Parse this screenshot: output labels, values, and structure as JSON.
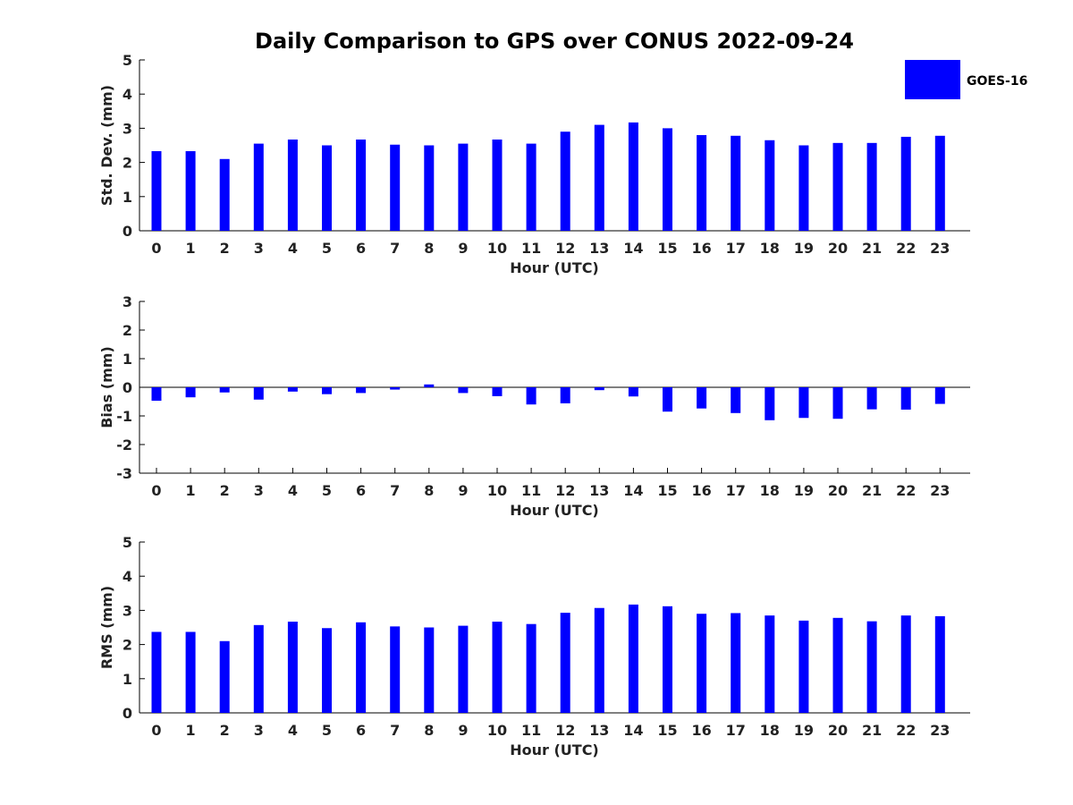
{
  "title": "Daily Comparison to GPS over CONUS 2022-09-24",
  "legend": {
    "label": "GOES-16",
    "placement": "top-right",
    "color": "#0000ff"
  },
  "bar_color": "#0000ff",
  "chart_data": [
    {
      "type": "bar",
      "xlabel": "Hour (UTC)",
      "ylabel": "Std. Dev. (mm)",
      "ylim": [
        0,
        5
      ],
      "yticks": [
        0,
        1,
        2,
        3,
        4,
        5
      ],
      "categories": [
        "0",
        "1",
        "2",
        "3",
        "4",
        "5",
        "6",
        "7",
        "8",
        "9",
        "10",
        "11",
        "12",
        "13",
        "14",
        "15",
        "16",
        "17",
        "18",
        "19",
        "20",
        "21",
        "22",
        "23"
      ],
      "series": [
        {
          "name": "GOES-16",
          "values": [
            2.33,
            2.33,
            2.1,
            2.55,
            2.67,
            2.5,
            2.67,
            2.52,
            2.5,
            2.55,
            2.67,
            2.55,
            2.9,
            3.1,
            3.17,
            3.0,
            2.8,
            2.78,
            2.65,
            2.5,
            2.57,
            2.57,
            2.75,
            2.78
          ]
        }
      ],
      "grid": false
    },
    {
      "type": "bar",
      "xlabel": "Hour (UTC)",
      "ylabel": "Bias (mm)",
      "ylim": [
        -3,
        3
      ],
      "yticks": [
        -3,
        -2,
        -1,
        0,
        1,
        2,
        3
      ],
      "categories": [
        "0",
        "1",
        "2",
        "3",
        "4",
        "5",
        "6",
        "7",
        "8",
        "9",
        "10",
        "11",
        "12",
        "13",
        "14",
        "15",
        "16",
        "17",
        "18",
        "19",
        "20",
        "21",
        "22",
        "23"
      ],
      "series": [
        {
          "name": "GOES-16",
          "values": [
            -0.47,
            -0.35,
            -0.18,
            -0.43,
            -0.15,
            -0.24,
            -0.2,
            -0.08,
            0.1,
            -0.2,
            -0.31,
            -0.6,
            -0.56,
            -0.1,
            -0.32,
            -0.85,
            -0.74,
            -0.9,
            -1.15,
            -1.07,
            -1.1,
            -0.77,
            -0.78,
            -0.58
          ]
        }
      ],
      "grid": false
    },
    {
      "type": "bar",
      "xlabel": "Hour (UTC)",
      "ylabel": "RMS (mm)",
      "ylim": [
        0,
        5
      ],
      "yticks": [
        0,
        1,
        2,
        3,
        4,
        5
      ],
      "categories": [
        "0",
        "1",
        "2",
        "3",
        "4",
        "5",
        "6",
        "7",
        "8",
        "9",
        "10",
        "11",
        "12",
        "13",
        "14",
        "15",
        "16",
        "17",
        "18",
        "19",
        "20",
        "21",
        "22",
        "23"
      ],
      "series": [
        {
          "name": "GOES-16",
          "values": [
            2.37,
            2.37,
            2.1,
            2.57,
            2.67,
            2.48,
            2.65,
            2.53,
            2.5,
            2.55,
            2.67,
            2.6,
            2.93,
            3.07,
            3.17,
            3.12,
            2.9,
            2.92,
            2.85,
            2.7,
            2.78,
            2.68,
            2.85,
            2.83
          ]
        }
      ],
      "grid": false
    }
  ]
}
